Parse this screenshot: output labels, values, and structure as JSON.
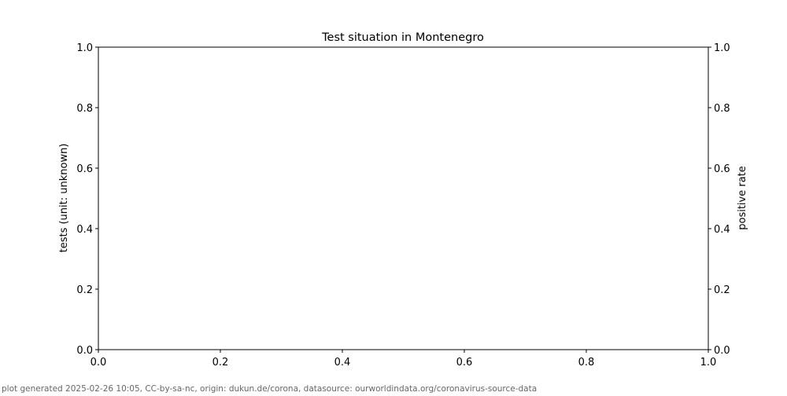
{
  "chart_data": {
    "type": "line",
    "title": "Test situation in Montenegro",
    "xlabel": "",
    "ylabel": "tests (unit: unknown)",
    "ylabel_right": "positive rate",
    "xlim": [
      0,
      1
    ],
    "ylim": [
      0,
      1
    ],
    "ylim_right": [
      0,
      1
    ],
    "x_ticks": [
      "0.0",
      "0.2",
      "0.4",
      "0.6",
      "0.8",
      "1.0"
    ],
    "y_ticks": [
      "0.0",
      "0.2",
      "0.4",
      "0.6",
      "0.8",
      "1.0"
    ],
    "y_ticks_right": [
      "0.0",
      "0.2",
      "0.4",
      "0.6",
      "0.8",
      "1.0"
    ],
    "grid": false,
    "series": []
  },
  "footer": "plot generated 2025-02-26 10:05, CC-by-sa-nc, origin: dukun.de/corona, datasource: ourworldindata.org/coronavirus-source-data"
}
